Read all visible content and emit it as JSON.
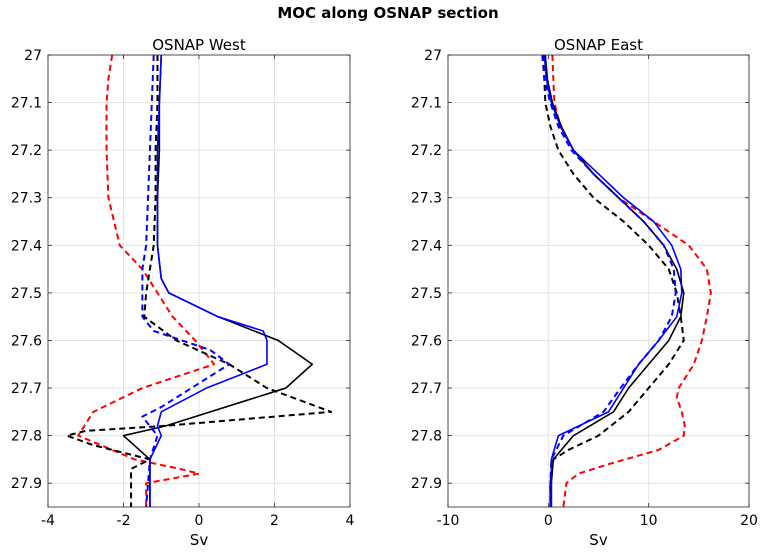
{
  "figure": {
    "title": "MOC along OSNAP section"
  },
  "chart_data": [
    {
      "type": "line",
      "title": "OSNAP West",
      "xlabel": "Sv",
      "ylabel": "",
      "xlim": [
        -4,
        4
      ],
      "ylim": [
        27,
        27.95
      ],
      "y_reversed": true,
      "xticks": [
        -4,
        -2,
        0,
        2,
        4
      ],
      "yticks": [
        27,
        27.1,
        27.2,
        27.3,
        27.4,
        27.5,
        27.6,
        27.7,
        27.8,
        27.9
      ],
      "grid": true,
      "series": [
        {
          "name": "red dashed",
          "color": "#ff0000",
          "dash": true,
          "points": [
            [
              -2.3,
              27.0
            ],
            [
              -2.4,
              27.05
            ],
            [
              -2.45,
              27.1
            ],
            [
              -2.45,
              27.2
            ],
            [
              -2.4,
              27.3
            ],
            [
              -2.1,
              27.4
            ],
            [
              -1.5,
              27.45
            ],
            [
              -1.1,
              27.5
            ],
            [
              -0.7,
              27.55
            ],
            [
              -0.1,
              27.6
            ],
            [
              0.4,
              27.65
            ],
            [
              -1.5,
              27.7
            ],
            [
              -2.8,
              27.75
            ],
            [
              -3.2,
              27.8
            ],
            [
              -2.3,
              27.83
            ],
            [
              -1.7,
              27.85
            ],
            [
              -0.5,
              27.87
            ],
            [
              0.0,
              27.88
            ],
            [
              -1.4,
              27.9
            ],
            [
              -1.4,
              27.95
            ]
          ]
        },
        {
          "name": "black dashed",
          "color": "#000000",
          "dash": true,
          "points": [
            [
              -1.1,
              27.0
            ],
            [
              -1.1,
              27.1
            ],
            [
              -1.15,
              27.2
            ],
            [
              -1.15,
              27.3
            ],
            [
              -1.2,
              27.4
            ],
            [
              -1.3,
              27.45
            ],
            [
              -1.4,
              27.5
            ],
            [
              -1.45,
              27.55
            ],
            [
              -0.6,
              27.6
            ],
            [
              0.8,
              27.65
            ],
            [
              1.8,
              27.7
            ],
            [
              3.5,
              27.75
            ],
            [
              -1.0,
              27.78
            ],
            [
              -3.0,
              27.79
            ],
            [
              -3.5,
              27.8
            ],
            [
              -2.8,
              27.82
            ],
            [
              -1.3,
              27.85
            ],
            [
              -1.8,
              27.87
            ],
            [
              -1.8,
              27.95
            ]
          ]
        },
        {
          "name": "black solid",
          "color": "#000000",
          "dash": false,
          "points": [
            [
              -1.0,
              27.0
            ],
            [
              -1.05,
              27.1
            ],
            [
              -1.05,
              27.2
            ],
            [
              -1.1,
              27.3
            ],
            [
              -1.1,
              27.4
            ],
            [
              -1.0,
              27.47
            ],
            [
              -0.8,
              27.5
            ],
            [
              0.5,
              27.55
            ],
            [
              2.1,
              27.6
            ],
            [
              3.0,
              27.65
            ],
            [
              2.3,
              27.7
            ],
            [
              -0.9,
              27.78
            ],
            [
              -2.0,
              27.8
            ],
            [
              -1.3,
              27.85
            ],
            [
              -1.3,
              27.95
            ]
          ]
        },
        {
          "name": "blue solid",
          "color": "#0000ff",
          "dash": false,
          "points": [
            [
              -1.0,
              27.0
            ],
            [
              -1.05,
              27.1
            ],
            [
              -1.1,
              27.2
            ],
            [
              -1.1,
              27.3
            ],
            [
              -1.1,
              27.4
            ],
            [
              -1.0,
              27.47
            ],
            [
              -0.8,
              27.5
            ],
            [
              0.5,
              27.55
            ],
            [
              1.7,
              27.58
            ],
            [
              1.8,
              27.6
            ],
            [
              1.8,
              27.65
            ],
            [
              0.2,
              27.7
            ],
            [
              -1.0,
              27.75
            ],
            [
              -1.1,
              27.78
            ],
            [
              -1.0,
              27.8
            ],
            [
              -1.3,
              27.85
            ],
            [
              -1.3,
              27.95
            ]
          ]
        },
        {
          "name": "blue dashed",
          "color": "#0000ff",
          "dash": true,
          "points": [
            [
              -1.2,
              27.0
            ],
            [
              -1.25,
              27.1
            ],
            [
              -1.3,
              27.2
            ],
            [
              -1.35,
              27.3
            ],
            [
              -1.4,
              27.4
            ],
            [
              -1.5,
              27.45
            ],
            [
              -1.5,
              27.5
            ],
            [
              -1.5,
              27.55
            ],
            [
              -1.2,
              27.58
            ],
            [
              0.3,
              27.62
            ],
            [
              0.8,
              27.65
            ],
            [
              -0.2,
              27.7
            ],
            [
              -1.0,
              27.74
            ],
            [
              -1.5,
              27.76
            ],
            [
              -1.1,
              27.8
            ],
            [
              -1.3,
              27.85
            ],
            [
              -1.4,
              27.95
            ]
          ]
        }
      ]
    },
    {
      "type": "line",
      "title": "OSNAP East",
      "xlabel": "Sv",
      "ylabel": "",
      "xlim": [
        -10,
        20
      ],
      "ylim": [
        27,
        27.95
      ],
      "y_reversed": true,
      "xticks": [
        -10,
        0,
        10,
        20
      ],
      "yticks": [
        27,
        27.1,
        27.2,
        27.3,
        27.4,
        27.5,
        27.6,
        27.7,
        27.8,
        27.9
      ],
      "grid": true,
      "series": [
        {
          "name": "red dashed",
          "color": "#ff0000",
          "dash": true,
          "points": [
            [
              0.4,
              27.0
            ],
            [
              0.6,
              27.1
            ],
            [
              1.2,
              27.15
            ],
            [
              2.5,
              27.2
            ],
            [
              4.5,
              27.25
            ],
            [
              7.0,
              27.3
            ],
            [
              10.5,
              27.35
            ],
            [
              14.0,
              27.4
            ],
            [
              15.8,
              27.45
            ],
            [
              16.2,
              27.5
            ],
            [
              15.8,
              27.55
            ],
            [
              15.3,
              27.6
            ],
            [
              14.5,
              27.65
            ],
            [
              13.0,
              27.7
            ],
            [
              12.8,
              27.72
            ],
            [
              13.3,
              27.75
            ],
            [
              13.6,
              27.78
            ],
            [
              13.5,
              27.8
            ],
            [
              11.0,
              27.83
            ],
            [
              6.0,
              27.86
            ],
            [
              3.0,
              27.88
            ],
            [
              1.8,
              27.9
            ],
            [
              1.5,
              27.95
            ]
          ]
        },
        {
          "name": "black dashed",
          "color": "#000000",
          "dash": true,
          "points": [
            [
              -0.5,
              27.0
            ],
            [
              -0.3,
              27.1
            ],
            [
              0.2,
              27.15
            ],
            [
              1.0,
              27.2
            ],
            [
              2.5,
              27.25
            ],
            [
              4.5,
              27.3
            ],
            [
              7.5,
              27.35
            ],
            [
              10.0,
              27.4
            ],
            [
              12.0,
              27.45
            ],
            [
              12.8,
              27.5
            ],
            [
              13.2,
              27.55
            ],
            [
              13.5,
              27.6
            ],
            [
              12.0,
              27.65
            ],
            [
              10.0,
              27.7
            ],
            [
              8.0,
              27.75
            ],
            [
              5.0,
              27.8
            ],
            [
              2.0,
              27.83
            ],
            [
              0.5,
              27.85
            ],
            [
              0.2,
              27.9
            ],
            [
              0.2,
              27.95
            ]
          ]
        },
        {
          "name": "black solid",
          "color": "#000000",
          "dash": false,
          "points": [
            [
              -0.3,
              27.0
            ],
            [
              -0.1,
              27.05
            ],
            [
              0.4,
              27.1
            ],
            [
              1.3,
              27.15
            ],
            [
              2.5,
              27.2
            ],
            [
              4.5,
              27.25
            ],
            [
              7.0,
              27.3
            ],
            [
              9.5,
              27.35
            ],
            [
              11.5,
              27.4
            ],
            [
              12.8,
              27.45
            ],
            [
              13.5,
              27.5
            ],
            [
              13.2,
              27.55
            ],
            [
              12.0,
              27.6
            ],
            [
              10.0,
              27.65
            ],
            [
              8.0,
              27.7
            ],
            [
              6.5,
              27.75
            ],
            [
              2.5,
              27.8
            ],
            [
              0.5,
              27.85
            ],
            [
              0.3,
              27.9
            ],
            [
              0.3,
              27.95
            ]
          ]
        },
        {
          "name": "blue solid",
          "color": "#0000ff",
          "dash": false,
          "points": [
            [
              -0.4,
              27.0
            ],
            [
              -0.2,
              27.05
            ],
            [
              0.3,
              27.1
            ],
            [
              1.2,
              27.15
            ],
            [
              2.5,
              27.2
            ],
            [
              5.0,
              27.25
            ],
            [
              7.5,
              27.3
            ],
            [
              10.5,
              27.35
            ],
            [
              12.3,
              27.4
            ],
            [
              13.2,
              27.45
            ],
            [
              13.3,
              27.5
            ],
            [
              12.8,
              27.55
            ],
            [
              11.0,
              27.6
            ],
            [
              9.0,
              27.65
            ],
            [
              7.5,
              27.7
            ],
            [
              6.0,
              27.75
            ],
            [
              1.0,
              27.8
            ],
            [
              0.3,
              27.85
            ],
            [
              0.3,
              27.9
            ],
            [
              0.3,
              27.95
            ]
          ]
        },
        {
          "name": "blue dashed",
          "color": "#0000ff",
          "dash": true,
          "points": [
            [
              -0.6,
              27.0
            ],
            [
              -0.4,
              27.05
            ],
            [
              0.2,
              27.1
            ],
            [
              1.0,
              27.15
            ],
            [
              2.3,
              27.2
            ],
            [
              4.5,
              27.25
            ],
            [
              7.0,
              27.3
            ],
            [
              9.5,
              27.35
            ],
            [
              11.5,
              27.4
            ],
            [
              12.5,
              27.45
            ],
            [
              12.7,
              27.5
            ],
            [
              12.3,
              27.55
            ],
            [
              11.0,
              27.6
            ],
            [
              9.0,
              27.65
            ],
            [
              7.2,
              27.7
            ],
            [
              5.5,
              27.75
            ],
            [
              1.5,
              27.8
            ],
            [
              0.3,
              27.85
            ],
            [
              0.2,
              27.9
            ],
            [
              0.2,
              27.95
            ]
          ]
        }
      ]
    }
  ]
}
